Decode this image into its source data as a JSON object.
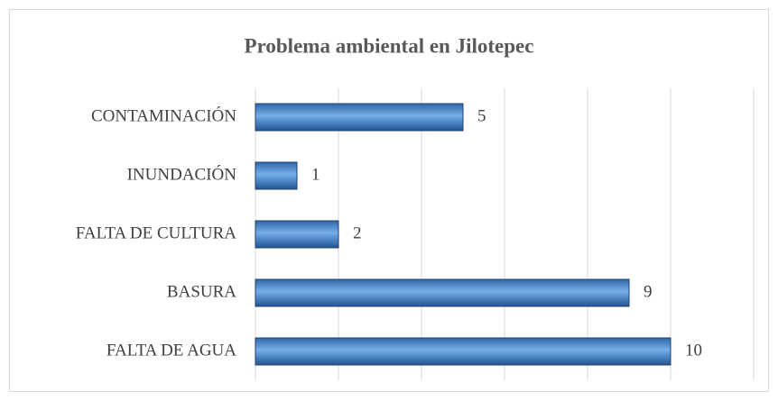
{
  "chart_data": {
    "type": "bar",
    "orientation": "horizontal",
    "title": "Problema ambiental en Jilotepec",
    "categories": [
      "CONTAMINACIÓN",
      "INUNDACIÓN",
      "FALTA DE CULTURA",
      "BASURA",
      "FALTA DE AGUA"
    ],
    "values": [
      5,
      1,
      2,
      9,
      10
    ],
    "color": "#4a86c8",
    "xlim": [
      0,
      12
    ],
    "xticks": [
      0,
      2,
      4,
      6,
      8,
      10,
      12
    ],
    "grid": true
  }
}
